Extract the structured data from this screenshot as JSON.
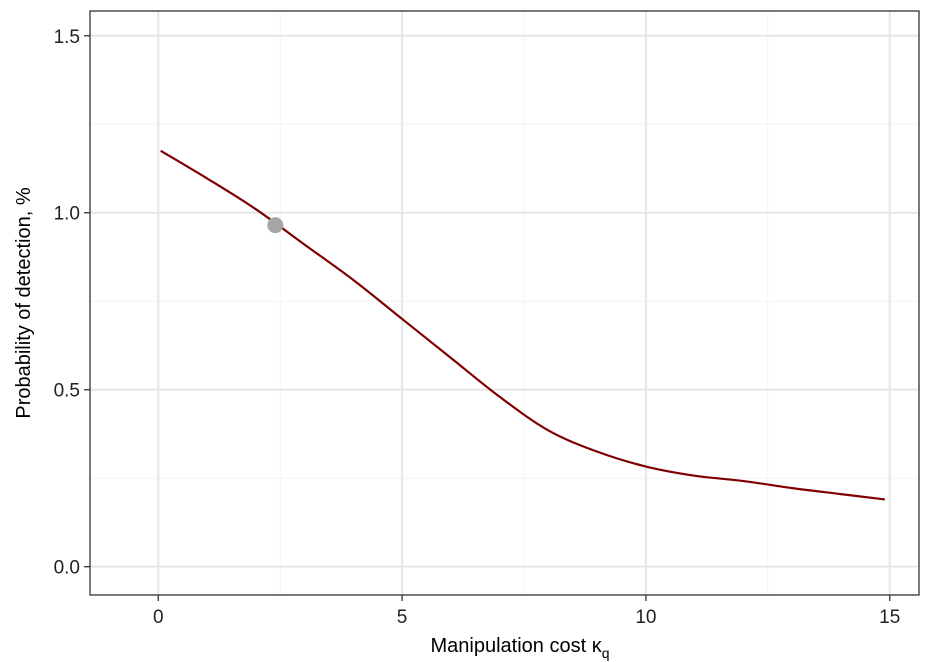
{
  "chart_data": {
    "type": "line",
    "xlabel": "Manipulation cost κ",
    "xlabel_subscript": "q",
    "ylabel": "Probability of detection, %",
    "xlim": [
      -1.4,
      15.6
    ],
    "ylim": [
      -0.08,
      1.57
    ],
    "x_ticks": [
      0,
      5,
      10,
      15
    ],
    "x_tick_labels": [
      "0",
      "5",
      "10",
      "15"
    ],
    "y_ticks": [
      0.0,
      0.5,
      1.0,
      1.5
    ],
    "y_tick_labels": [
      "0.0",
      "0.5",
      "1.0",
      "1.5"
    ],
    "grid": true,
    "line_color": "#800000",
    "point_color": "#a6a6a6",
    "series": [
      {
        "x": [
          0.05,
          1.0,
          2.0,
          3.0,
          4.0,
          5.0,
          6.0,
          7.0,
          8.0,
          9.0,
          10.0,
          11.0,
          12.0,
          13.0,
          14.0,
          14.9
        ],
        "y": [
          1.175,
          1.097,
          1.01,
          0.91,
          0.81,
          0.7,
          0.59,
          0.48,
          0.385,
          0.325,
          0.283,
          0.257,
          0.242,
          0.222,
          0.205,
          0.19
        ]
      }
    ],
    "highlight_point": {
      "x": 2.4,
      "y": 0.965
    }
  }
}
